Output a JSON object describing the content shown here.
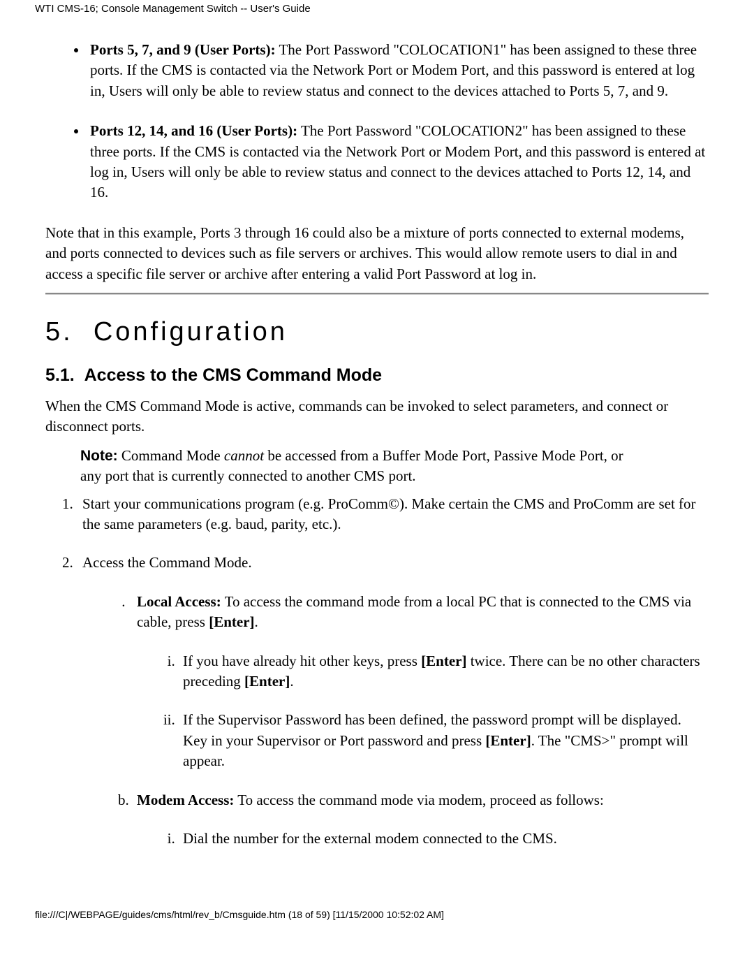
{
  "header": {
    "title": "WTI CMS-16; Console Management Switch -- User's Guide"
  },
  "bullets": [
    {
      "lead": "Ports 5, 7, and 9 (User Ports):",
      "text": " The Port Password \"COLOCATION1\" has been assigned to these three ports. If the CMS is contacted via the Network Port or Modem Port, and this password is entered at log in, Users will only be able to review status and connect to the devices attached to Ports 5, 7, and 9."
    },
    {
      "lead": "Ports 12, 14, and 16 (User Ports):",
      "text": " The Port Password \"COLOCATION2\" has been assigned to these three ports. If the CMS is contacted via the Network Port or Modem Port, and this password is entered at log in, Users will only be able to review status and connect to the devices attached to Ports 12, 14, and 16."
    }
  ],
  "note_para": "Note that in this example, Ports 3 through 16 could also be a mixture of ports connected to external modems, and ports connected to devices such as file servers or archives. This would allow remote users to dial in and access a specific file server or archive after entering a valid Port Password at log in.",
  "chapter": {
    "number": "5.",
    "title": "Configuration"
  },
  "section": {
    "number": "5.1.",
    "title": "Access to the CMS Command Mode"
  },
  "section_intro": "When the CMS Command Mode is active, commands can be invoked to select parameters, and connect or disconnect ports.",
  "note_block": {
    "label": "Note:",
    "pre": "  Command Mode ",
    "italic": "cannot",
    "post": " be accessed from a Buffer Mode Port, Passive Mode Port, or any port that is currently connected to another CMS port."
  },
  "steps": {
    "step1": "Start your communications program (e.g. ProComm©).  Make certain the CMS and ProComm are set for the same parameters (e.g. baud, parity, etc.).",
    "step2": "Access the Command Mode.",
    "step2a": {
      "lead": "Local Access:",
      "text1": "  To access the command mode from a local PC that is connected to the CMS via cable, press ",
      "enter": "[Enter]",
      "text2": "."
    },
    "step2a_i": {
      "text1": "If you have already hit other keys, press ",
      "enter1": "[Enter]",
      "text2": " twice. There can be no other characters preceding ",
      "enter2": "[Enter]",
      "text3": "."
    },
    "step2a_ii": {
      "text1": "If the Supervisor Password has been defined, the password prompt will be displayed. Key in your Supervisor or Port password and press ",
      "enter": "[Enter]",
      "text2": ". The \"CMS>\" prompt will appear."
    },
    "step2b": {
      "lead": "Modem Access:",
      "text": "  To access the command mode via modem, proceed as follows:"
    },
    "step2b_i": "Dial the number for the external modem connected to the CMS."
  },
  "footer": "file:///C|/WEBPAGE/guides/cms/html/rev_b/Cmsguide.htm (18 of 59) [11/15/2000 10:52:02 AM]"
}
